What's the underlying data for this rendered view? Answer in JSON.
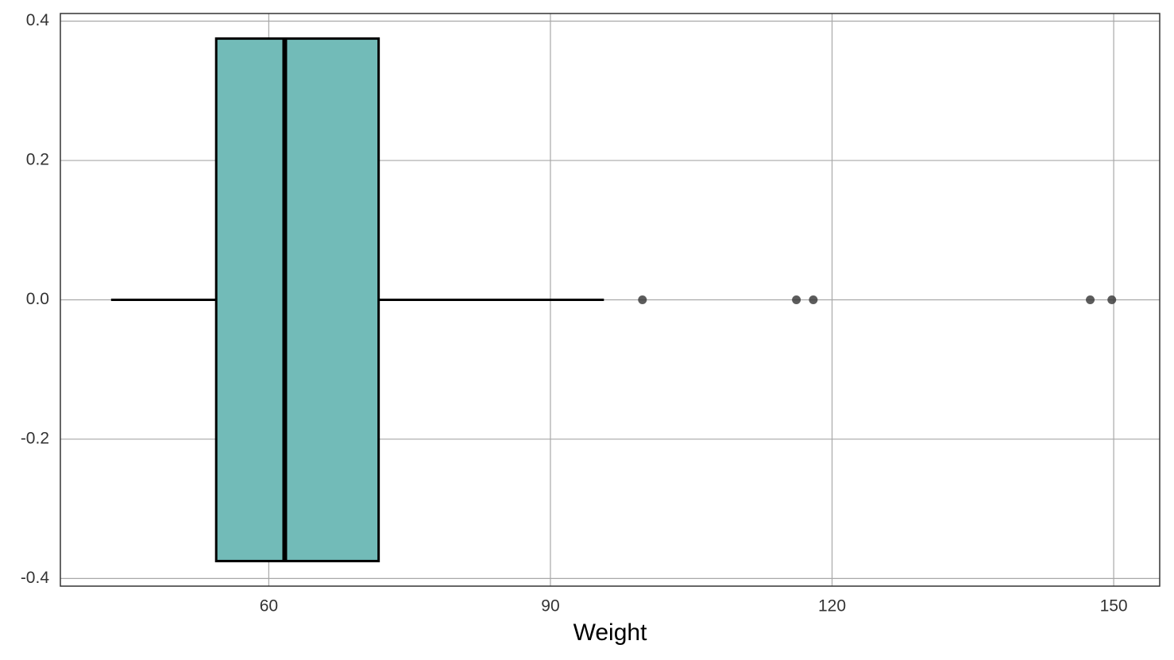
{
  "chart_data": {
    "type": "boxplot",
    "orientation": "horizontal",
    "xlabel": "Weight",
    "boxes": [
      {
        "whislo": 43.2,
        "q1": 54.4,
        "med": 61.7,
        "q3": 71.7,
        "whishi": 95.7,
        "outliers": [
          99.8,
          116.2,
          118.0,
          147.5,
          149.8
        ],
        "position": 0,
        "box_width": 0.75
      }
    ],
    "color": "#72bbb8",
    "outlier_color": "#333333",
    "xlim": [
      37.8,
      154.9
    ],
    "xticks": [
      60,
      90,
      120,
      150
    ],
    "ylim": [
      -0.411,
      0.411
    ],
    "yticks": [
      -0.4,
      -0.2,
      {
        "value": 0,
        "label": "0.0"
      },
      0.2,
      0.4
    ],
    "grid": true
  }
}
